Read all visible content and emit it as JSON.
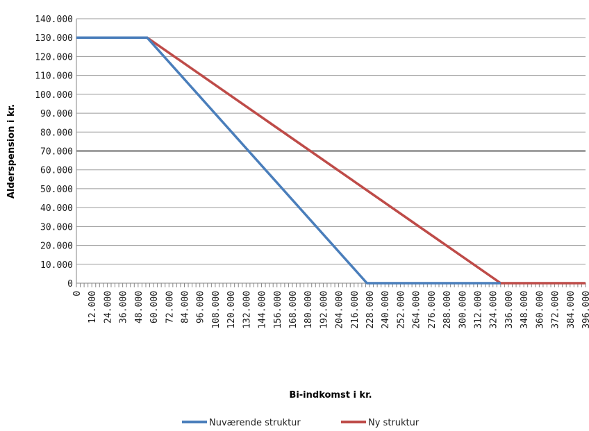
{
  "chart_data": {
    "type": "line",
    "xlabel": "Bi-indkomst i kr.",
    "ylabel": "Alderspension i kr.",
    "xlim": [
      0,
      396000
    ],
    "ylim": [
      0,
      140000
    ],
    "x_ticks": [
      "0",
      "12.000",
      "24.000",
      "36.000",
      "48.000",
      "60.000",
      "72.000",
      "84.000",
      "96.000",
      "108.000",
      "120.000",
      "132.000",
      "144.000",
      "156.000",
      "168.000",
      "180.000",
      "192.000",
      "204.000",
      "216.000",
      "228.000",
      "240.000",
      "252.000",
      "264.000",
      "276.000",
      "288.000",
      "300.000",
      "312.000",
      "324.000",
      "336.000",
      "348.000",
      "360.000",
      "372.000",
      "384.000",
      "396.000"
    ],
    "y_ticks": [
      "0",
      "10.000",
      "20.000",
      "30.000",
      "40.000",
      "50.000",
      "60.000",
      "70.000",
      "80.000",
      "90.000",
      "100.000",
      "110.000",
      "120.000",
      "130.000",
      "140.000"
    ],
    "highlight_gridline": 70000,
    "grid": true,
    "legend_position": "bottom",
    "colors": {
      "nuvaerende": "#4a7ebb",
      "ny": "#be4b48",
      "grid": "#8c8c8c"
    },
    "series": [
      {
        "name": "Nuværende struktur",
        "color": "#4a7ebb",
        "points": [
          [
            0,
            130000
          ],
          [
            55000,
            130000
          ],
          [
            226000,
            0
          ],
          [
            330000,
            0
          ]
        ]
      },
      {
        "name": "Ny struktur",
        "color": "#be4b48",
        "points": [
          [
            0,
            130000
          ],
          [
            55000,
            130000
          ],
          [
            330000,
            0
          ],
          [
            396000,
            0
          ]
        ]
      }
    ]
  }
}
